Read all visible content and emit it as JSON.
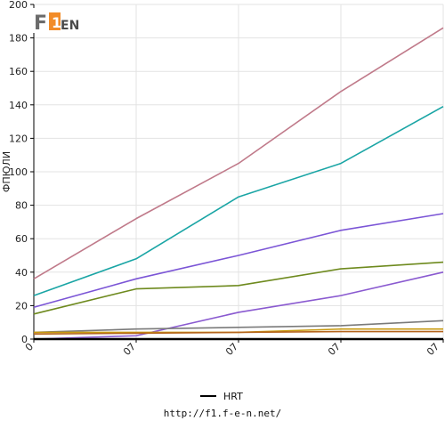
{
  "logo": {
    "text": "F1EN",
    "accent_color": "#f28c28"
  },
  "chart_data": {
    "type": "line",
    "title": "",
    "xlabel": "",
    "ylabel": "ФПЮЛИ",
    "x": [
      "0",
      "07",
      "07",
      "07",
      "07"
    ],
    "ylim": [
      0,
      200
    ],
    "yticks": [
      0,
      20,
      40,
      60,
      80,
      100,
      120,
      140,
      160,
      180,
      200
    ],
    "grid": true,
    "series": [
      {
        "color": "#c07a8a",
        "values": [
          36,
          72,
          105,
          148,
          186
        ]
      },
      {
        "color": "#1aa5a5",
        "values": [
          26,
          48,
          85,
          105,
          139
        ]
      },
      {
        "color": "#7b55d6",
        "values": [
          19,
          36,
          50,
          65,
          75
        ]
      },
      {
        "color": "#6e8a1e",
        "values": [
          15,
          30,
          32,
          42,
          46
        ]
      },
      {
        "color": "#8a5ad0",
        "values": [
          0,
          2,
          16,
          26,
          40
        ]
      },
      {
        "color": "#7a7a7a",
        "values": [
          4,
          6,
          7,
          8,
          11
        ]
      },
      {
        "color": "#c79a10",
        "values": [
          4,
          4,
          4,
          6,
          6
        ]
      },
      {
        "color": "#b5651d",
        "values": [
          3,
          3.5,
          4,
          4.5,
          4.5
        ]
      },
      {
        "name": "HRT",
        "color": "#000000",
        "values": [
          0,
          0,
          0,
          0,
          0
        ]
      }
    ],
    "legend": {
      "position": "bottom",
      "entries": [
        "HRT"
      ]
    }
  },
  "footer": {
    "url": "http://f1.f-e-n.net/"
  }
}
